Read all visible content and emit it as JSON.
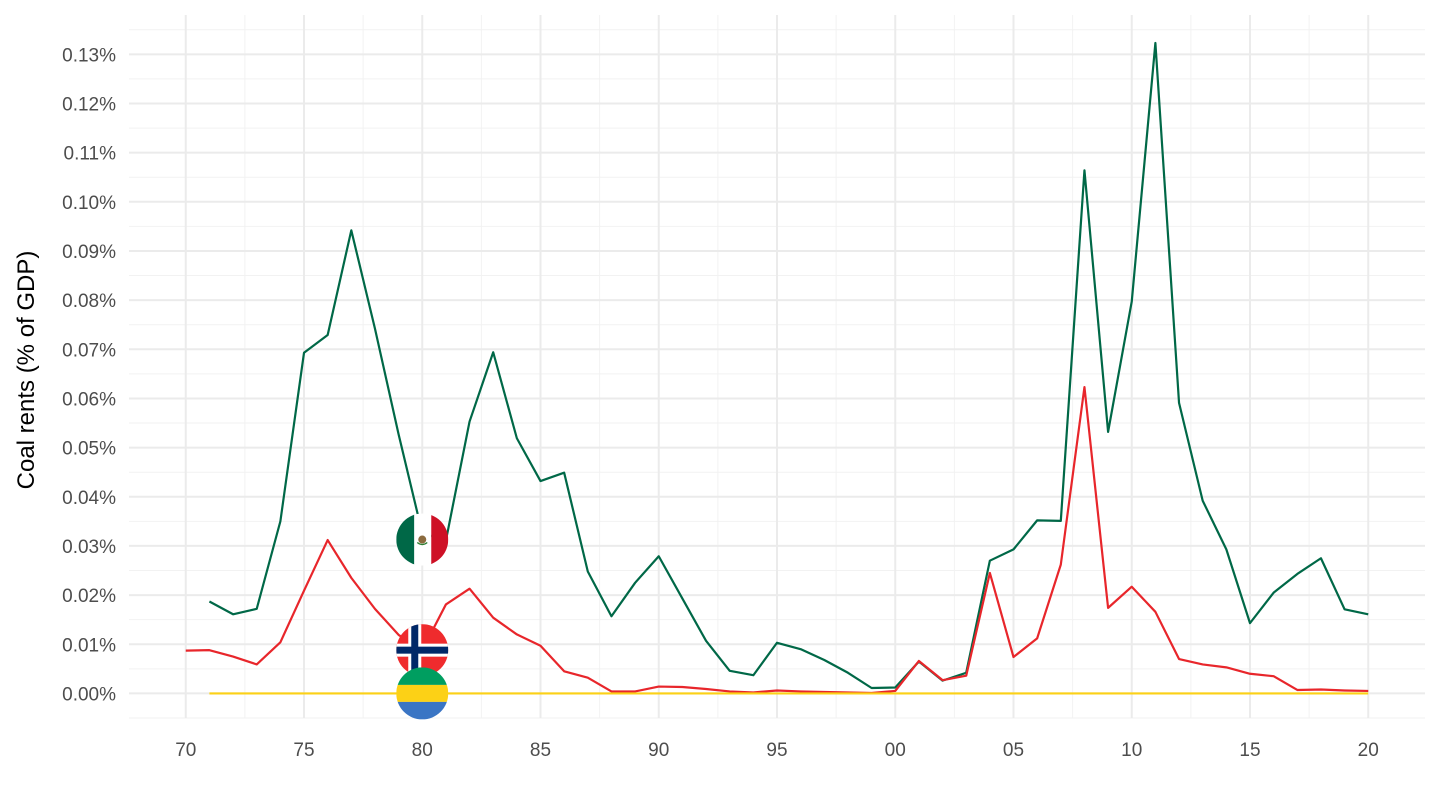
{
  "chart_data": {
    "type": "line",
    "title": "",
    "xlabel": "",
    "ylabel": "Coal rents (% of GDP)",
    "xlim": [
      1967.6,
      2022.4
    ],
    "ylim": [
      -5e-05,
      0.00138
    ],
    "x_ticks": [
      {
        "value": 1970,
        "label": "70"
      },
      {
        "value": 1975,
        "label": "75"
      },
      {
        "value": 1980,
        "label": "80"
      },
      {
        "value": 1985,
        "label": "85"
      },
      {
        "value": 1990,
        "label": "90"
      },
      {
        "value": 1995,
        "label": "95"
      },
      {
        "value": 2000,
        "label": "00"
      },
      {
        "value": 2005,
        "label": "05"
      },
      {
        "value": 2010,
        "label": "10"
      },
      {
        "value": 2015,
        "label": "15"
      },
      {
        "value": 2020,
        "label": "20"
      }
    ],
    "y_ticks": [
      {
        "value": 0.0,
        "label": "0.00%"
      },
      {
        "value": 0.0001,
        "label": "0.01%"
      },
      {
        "value": 0.0002,
        "label": "0.02%"
      },
      {
        "value": 0.0003,
        "label": "0.03%"
      },
      {
        "value": 0.0004,
        "label": "0.04%"
      },
      {
        "value": 0.0005,
        "label": "0.05%"
      },
      {
        "value": 0.0006,
        "label": "0.06%"
      },
      {
        "value": 0.0007,
        "label": "0.07%"
      },
      {
        "value": 0.0008,
        "label": "0.08%"
      },
      {
        "value": 0.0009,
        "label": "0.09%"
      },
      {
        "value": 0.001,
        "label": "0.10%"
      },
      {
        "value": 0.0011,
        "label": "0.11%"
      },
      {
        "value": 0.0012,
        "label": "0.12%"
      },
      {
        "value": 0.0013,
        "label": "0.13%"
      }
    ],
    "grid": true,
    "legend": "flag icons at 1980",
    "series": [
      {
        "flag": "mexico-flag",
        "color": "#006847",
        "x": [
          1971,
          1972,
          1973,
          1974,
          1975,
          1976,
          1977,
          1978,
          1979,
          1980,
          1981,
          1982,
          1983,
          1984,
          1985,
          1986,
          1987,
          1988,
          1989,
          1990,
          1991,
          1992,
          1993,
          1994,
          1995,
          1996,
          1997,
          1998,
          1999,
          2000,
          2001,
          2002,
          2003,
          2004,
          2005,
          2006,
          2007,
          2008,
          2009,
          2010,
          2011,
          2012,
          2013,
          2014,
          2015,
          2016,
          2017,
          2018,
          2019,
          2020
        ],
        "y": [
          0.000187,
          0.000161,
          0.000172,
          0.00035,
          0.000693,
          0.000729,
          0.000942,
          0.000742,
          0.000527,
          0.000326,
          0.000311,
          0.000553,
          0.000694,
          0.000519,
          0.000432,
          0.000449,
          0.000248,
          0.000157,
          0.000225,
          0.000279,
          0.000193,
          0.000107,
          4.6e-05,
          3.7e-05,
          0.000103,
          9e-05,
          6.8e-05,
          4.2e-05,
          1.1e-05,
          1.2e-05,
          6.5e-05,
          2.6e-05,
          4.2e-05,
          0.00027,
          0.000293,
          0.000352,
          0.000351,
          0.001064,
          0.000532,
          0.000797,
          0.001323,
          0.000591,
          0.000392,
          0.000293,
          0.000143,
          0.000205,
          0.000243,
          0.000275,
          0.000171,
          0.000161
        ]
      },
      {
        "flag": "norway-flag",
        "color": "#e8262b",
        "x": [
          1970,
          1971,
          1972,
          1973,
          1974,
          1975,
          1976,
          1977,
          1978,
          1979,
          1980,
          1981,
          1982,
          1983,
          1984,
          1985,
          1986,
          1987,
          1988,
          1989,
          1990,
          1991,
          1992,
          1993,
          1994,
          1995,
          1996,
          1997,
          1998,
          1999,
          2000,
          2001,
          2002,
          2003,
          2004,
          2005,
          2006,
          2007,
          2008,
          2009,
          2010,
          2011,
          2012,
          2013,
          2014,
          2015,
          2016,
          2017,
          2018,
          2019,
          2020
        ],
        "y": [
          8.7e-05,
          8.8e-05,
          7.5e-05,
          5.9e-05,
          0.000104,
          0.000209,
          0.000312,
          0.000235,
          0.000172,
          0.000119,
          8.8e-05,
          0.000181,
          0.000213,
          0.000154,
          0.00012,
          9.7e-05,
          4.5e-05,
          3.2e-05,
          4e-06,
          4e-06,
          1.4e-05,
          1.3e-05,
          9e-06,
          4e-06,
          2e-06,
          6e-06,
          4e-06,
          3e-06,
          2e-06,
          1e-06,
          5e-06,
          6.6e-05,
          2.7e-05,
          3.6e-05,
          0.000245,
          7.4e-05,
          0.000112,
          0.000262,
          0.000623,
          0.000174,
          0.000217,
          0.000166,
          7e-05,
          5.9e-05,
          5.3e-05,
          4e-05,
          3.5e-05,
          7e-06,
          8e-06,
          6e-06,
          5e-06
        ]
      },
      {
        "flag": "gabon-flag",
        "color": "#fcd116",
        "x": [
          1971,
          1975,
          1980,
          1985,
          1990,
          1995,
          2000,
          2005,
          2010,
          2015,
          2020
        ],
        "y": [
          0,
          0,
          0,
          0,
          0,
          0,
          0,
          0,
          0,
          0,
          0
        ]
      }
    ]
  }
}
